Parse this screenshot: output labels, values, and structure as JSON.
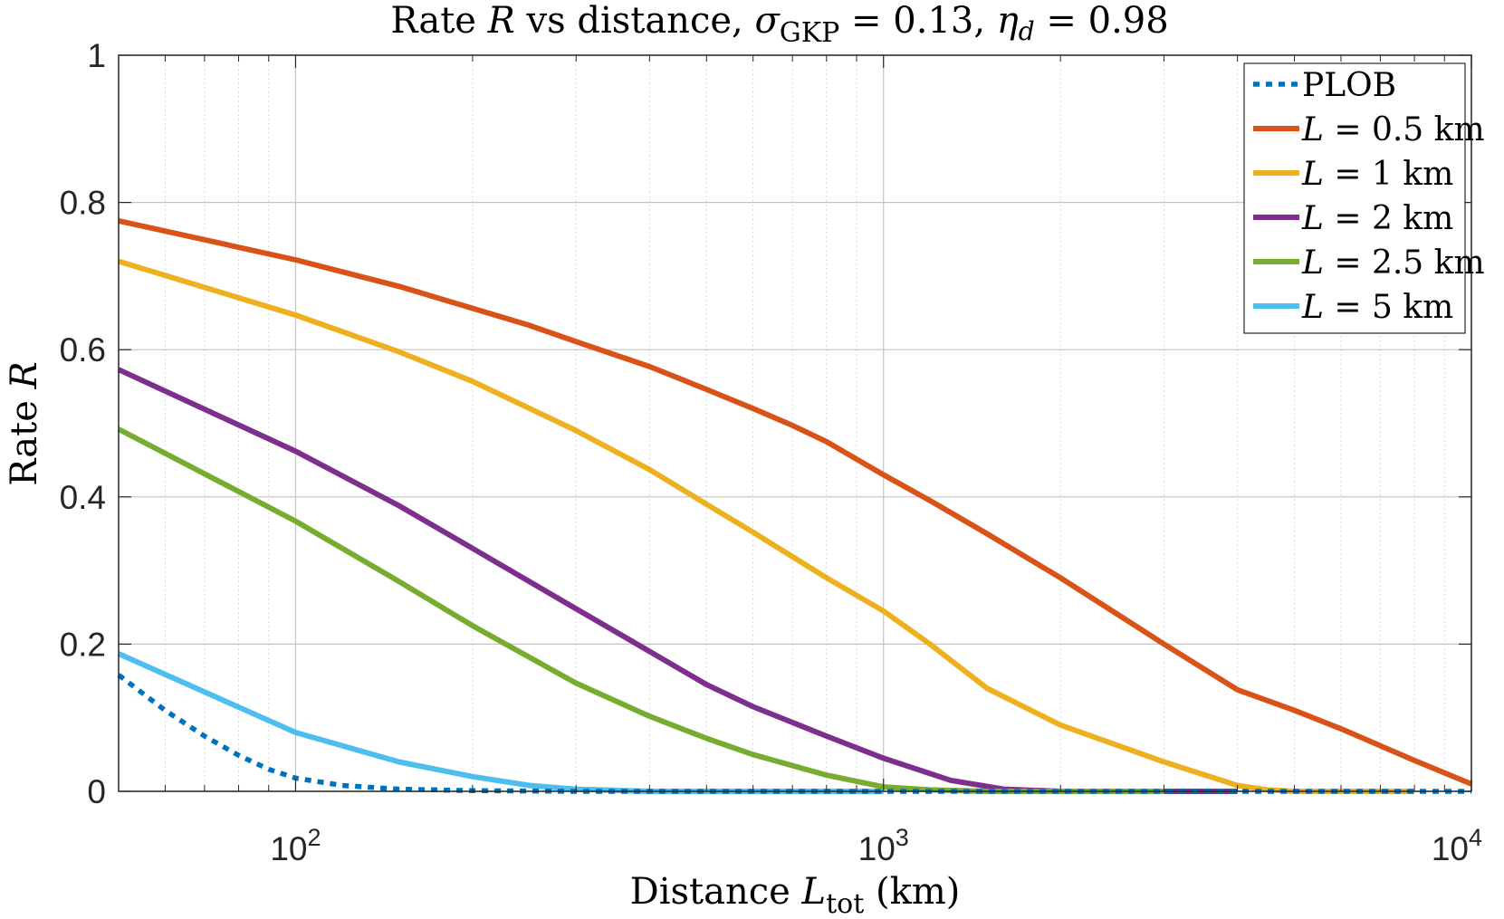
{
  "chart_data": {
    "type": "line",
    "title": {
      "prefix": "Rate ",
      "var_R": "R",
      "mid": " vs distance, ",
      "sigma": "σ",
      "sigma_sub": "GKP",
      "sigma_eq": " = 0.13, ",
      "eta": "η",
      "eta_sub": "d",
      "eta_eq": " = 0.98"
    },
    "xlabel": {
      "prefix": "Distance ",
      "var": "L",
      "sub": "tot",
      "suffix": " (km)"
    },
    "ylabel": {
      "prefix": "Rate ",
      "var": "R"
    },
    "xscale": "log",
    "xlim": [
      50,
      10000
    ],
    "ylim": [
      0,
      1
    ],
    "grid": true,
    "minor_grid": true,
    "legend_position": "top-right",
    "yticks": [
      {
        "v": 0,
        "label": "0"
      },
      {
        "v": 0.2,
        "label": "0.2"
      },
      {
        "v": 0.4,
        "label": "0.4"
      },
      {
        "v": 0.6,
        "label": "0.6"
      },
      {
        "v": 0.8,
        "label": "0.8"
      },
      {
        "v": 1,
        "label": "1"
      }
    ],
    "xticks": [
      {
        "v": 100,
        "base": "10",
        "exp": "2"
      },
      {
        "v": 1000,
        "base": "10",
        "exp": "3"
      },
      {
        "v": 10000,
        "base": "10",
        "exp": "4"
      }
    ],
    "series": [
      {
        "name": "PLOB",
        "legend_var": "",
        "legend_text": "PLOB",
        "color": "#0072bd",
        "style": "dotted",
        "points": [
          [
            50,
            0.158
          ],
          [
            60,
            0.11
          ],
          [
            70,
            0.075
          ],
          [
            80,
            0.049
          ],
          [
            90,
            0.03
          ],
          [
            100,
            0.018
          ],
          [
            120,
            0.008
          ],
          [
            150,
            0.003
          ],
          [
            200,
            0.001
          ],
          [
            300,
            0.0
          ],
          [
            1000,
            0.0
          ],
          [
            10000,
            0.0
          ]
        ]
      },
      {
        "name": "L = 0.5 km",
        "legend_var": "L",
        "legend_text": " = 0.5 km",
        "color": "#d95319",
        "style": "solid",
        "points": [
          [
            50,
            0.775
          ],
          [
            100,
            0.722
          ],
          [
            150,
            0.686
          ],
          [
            250,
            0.633
          ],
          [
            300,
            0.611
          ],
          [
            400,
            0.577
          ],
          [
            500,
            0.546
          ],
          [
            600,
            0.52
          ],
          [
            700,
            0.497
          ],
          [
            800,
            0.475
          ],
          [
            1000,
            0.43
          ],
          [
            1200,
            0.395
          ],
          [
            1500,
            0.35
          ],
          [
            2000,
            0.29
          ],
          [
            3000,
            0.2
          ],
          [
            4000,
            0.138
          ],
          [
            5000,
            0.11
          ],
          [
            6000,
            0.085
          ],
          [
            8000,
            0.042
          ],
          [
            10000,
            0.01
          ]
        ]
      },
      {
        "name": "L = 1 km",
        "legend_var": "L",
        "legend_text": " = 1 km",
        "color": "#edb120",
        "style": "solid",
        "points": [
          [
            50,
            0.72
          ],
          [
            100,
            0.647
          ],
          [
            150,
            0.597
          ],
          [
            200,
            0.557
          ],
          [
            300,
            0.49
          ],
          [
            400,
            0.437
          ],
          [
            500,
            0.39
          ],
          [
            600,
            0.352
          ],
          [
            800,
            0.29
          ],
          [
            1000,
            0.245
          ],
          [
            1200,
            0.2
          ],
          [
            1500,
            0.14
          ],
          [
            2000,
            0.09
          ],
          [
            3000,
            0.04
          ],
          [
            4000,
            0.008
          ],
          [
            4500,
            0.002
          ],
          [
            5000,
            0.0
          ],
          [
            8000,
            0.0
          ]
        ]
      },
      {
        "name": "L = 2 km",
        "legend_var": "L",
        "legend_text": " = 2 km",
        "color": "#7e2f8e",
        "style": "solid",
        "points": [
          [
            50,
            0.573
          ],
          [
            100,
            0.462
          ],
          [
            150,
            0.388
          ],
          [
            200,
            0.33
          ],
          [
            300,
            0.248
          ],
          [
            400,
            0.19
          ],
          [
            500,
            0.145
          ],
          [
            600,
            0.115
          ],
          [
            800,
            0.075
          ],
          [
            1000,
            0.045
          ],
          [
            1300,
            0.015
          ],
          [
            1600,
            0.003
          ],
          [
            2000,
            0.0
          ],
          [
            4000,
            0.0
          ]
        ]
      },
      {
        "name": "L = 2.5 km",
        "legend_var": "L",
        "legend_text": " = 2.5 km",
        "color": "#77ac30",
        "style": "solid",
        "points": [
          [
            50,
            0.492
          ],
          [
            100,
            0.367
          ],
          [
            150,
            0.285
          ],
          [
            200,
            0.225
          ],
          [
            250,
            0.182
          ],
          [
            300,
            0.147
          ],
          [
            400,
            0.102
          ],
          [
            500,
            0.072
          ],
          [
            600,
            0.05
          ],
          [
            800,
            0.022
          ],
          [
            1000,
            0.006
          ],
          [
            1200,
            0.002
          ],
          [
            1500,
            0.0
          ],
          [
            3000,
            0.0
          ]
        ]
      },
      {
        "name": "L = 5 km",
        "legend_var": "L",
        "legend_text": " = 5 km",
        "color": "#4dbeee",
        "style": "solid",
        "points": [
          [
            50,
            0.187
          ],
          [
            100,
            0.08
          ],
          [
            150,
            0.04
          ],
          [
            200,
            0.02
          ],
          [
            250,
            0.008
          ],
          [
            300,
            0.003
          ],
          [
            400,
            0.0
          ],
          [
            1000,
            0.0
          ]
        ]
      }
    ]
  }
}
